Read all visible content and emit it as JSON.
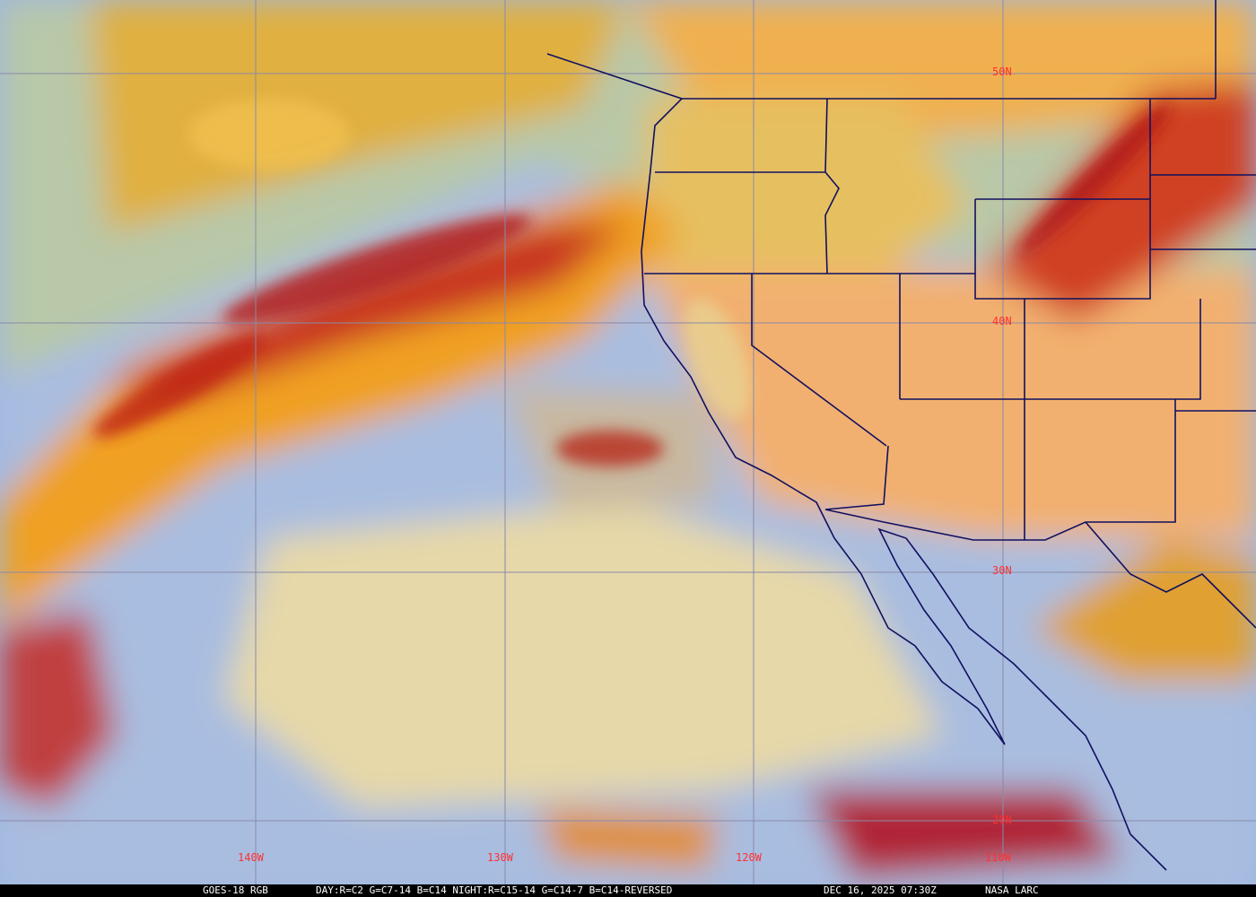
{
  "caption": {
    "product": "GOES-18 RGB",
    "recipe": "DAY:R=C2 G=C7-14 B=C14 NIGHT:R=C15-14 G=C14-7 B=C14-REVERSED",
    "datetime": "DEC 16, 2025 07:30Z",
    "credit": "NASA LARC"
  },
  "grid": {
    "latitudes": [
      "50N",
      "40N",
      "30N",
      "20N"
    ],
    "longitudes": [
      "140W",
      "130W",
      "120W",
      "110W"
    ],
    "line_color": "#8a8aa8",
    "label_color": "#ff3030"
  },
  "colors": {
    "boundary": "#101060",
    "clear_ocean": "#9fb7e0",
    "low_cloud": "#e8d8a0",
    "high_cloud": "#f0a030",
    "thick_cloud": "#c02020"
  }
}
